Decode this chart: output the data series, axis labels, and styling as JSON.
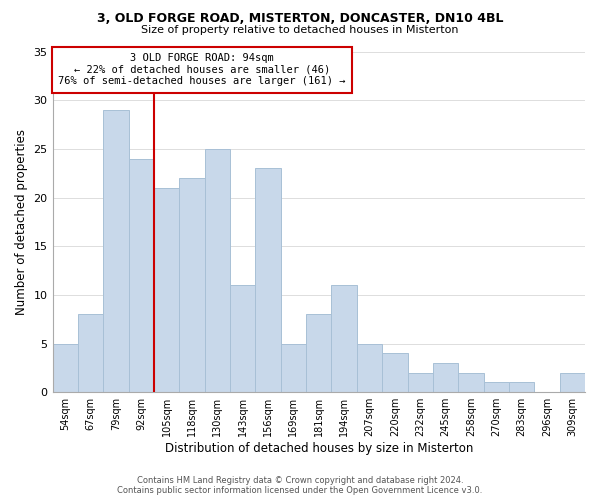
{
  "title": "3, OLD FORGE ROAD, MISTERTON, DONCASTER, DN10 4BL",
  "subtitle": "Size of property relative to detached houses in Misterton",
  "xlabel": "Distribution of detached houses by size in Misterton",
  "ylabel": "Number of detached properties",
  "bar_color": "#c8d8ea",
  "bar_edge_color": "#a8c0d6",
  "marker_line_color": "#cc0000",
  "categories": [
    "54sqm",
    "67sqm",
    "79sqm",
    "92sqm",
    "105sqm",
    "118sqm",
    "130sqm",
    "143sqm",
    "156sqm",
    "169sqm",
    "181sqm",
    "194sqm",
    "207sqm",
    "220sqm",
    "232sqm",
    "245sqm",
    "258sqm",
    "270sqm",
    "283sqm",
    "296sqm",
    "309sqm"
  ],
  "values": [
    5,
    8,
    29,
    24,
    21,
    22,
    25,
    11,
    23,
    5,
    8,
    11,
    5,
    4,
    2,
    3,
    2,
    1,
    1,
    0,
    2
  ],
  "ylim": [
    0,
    35
  ],
  "yticks": [
    0,
    5,
    10,
    15,
    20,
    25,
    30,
    35
  ],
  "annotation_title": "3 OLD FORGE ROAD: 94sqm",
  "annotation_line1": "← 22% of detached houses are smaller (46)",
  "annotation_line2": "76% of semi-detached houses are larger (161) →",
  "annotation_box_color": "#ffffff",
  "annotation_box_edge": "#cc0000",
  "footer_line1": "Contains HM Land Registry data © Crown copyright and database right 2024.",
  "footer_line2": "Contains public sector information licensed under the Open Government Licence v3.0.",
  "bg_color": "#ffffff",
  "grid_color": "#dddddd"
}
